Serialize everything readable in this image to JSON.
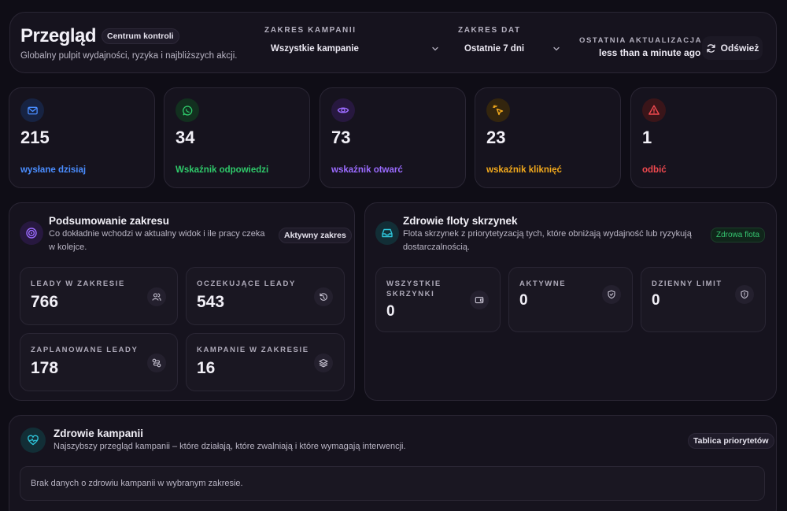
{
  "header": {
    "title": "Przegląd",
    "badge": "Centrum kontroli",
    "subtitle": "Globalny pulpit wydajności, ryzyka i najbliższych akcji.",
    "campaign_range": {
      "label": "ZAKRES KAMPANII",
      "value": "Wszystkie kampanie"
    },
    "date_range": {
      "label": "ZAKRES DAT",
      "value": "Ostatnie 7 dni"
    },
    "last_update": {
      "label": "OSTATNIA AKTUALIZACJA",
      "value": "less than a minute ago"
    },
    "refresh_label": "Odśwież"
  },
  "stats": [
    {
      "value": "215",
      "caption": "wysłane dzisiaj",
      "icon": "mail-icon",
      "color": "#4a8dff"
    },
    {
      "value": "34",
      "caption": "Wskaźnik odpowiedzi",
      "icon": "whatsapp-icon",
      "color": "#2fc96a"
    },
    {
      "value": "73",
      "caption": "wskaźnik otwarć",
      "icon": "eye-icon",
      "color": "#9b6bff"
    },
    {
      "value": "23",
      "caption": "wskaźnik kliknięć",
      "icon": "pointer-click-icon",
      "color": "#f2a91c"
    },
    {
      "value": "1",
      "caption": "odbić",
      "icon": "alert-triangle-icon",
      "color": "#f0494f"
    }
  ],
  "range_summary": {
    "title": "Podsumowanie zakresu",
    "description": "Co dokładnie wchodzi w aktualny widok i ile pracy czeka w kolejce.",
    "badge": "Aktywny zakres",
    "metrics": [
      {
        "label": "LEADY W ZAKRESIE",
        "value": "766",
        "icon": "users-icon"
      },
      {
        "label": "OCZEKUJĄCE LEADY",
        "value": "543",
        "icon": "timer-reset-icon"
      },
      {
        "label": "ZAPLANOWANE LEADY",
        "value": "178",
        "icon": "route-icon"
      },
      {
        "label": "KAMPANIE W ZAKRESIE",
        "value": "16",
        "icon": "layers-icon"
      }
    ]
  },
  "fleet_health": {
    "title": "Zdrowie floty skrzynek",
    "description": "Flota skrzynek z priorytetyzacją tych, które obniżają wydajność lub ryzykują dostarczalnością.",
    "badge": "Zdrowa flota",
    "metrics": [
      {
        "label": "WSZYSTKIE SKRZYNKI",
        "value": "0",
        "icon": "wallet-icon"
      },
      {
        "label": "AKTYWNE",
        "value": "0",
        "icon": "shield-check-icon"
      },
      {
        "label": "DZIENNY LIMIT",
        "value": "0",
        "icon": "shield-alert-icon"
      }
    ]
  },
  "campaign_health": {
    "title": "Zdrowie kampanii",
    "description": "Najszybszy przegląd kampanii – które działają, które zwalniają i które wymagają interwencji.",
    "badge": "Tablica priorytetów",
    "empty_message": "Brak danych o zdrowiu kampanii w wybranym zakresie."
  }
}
